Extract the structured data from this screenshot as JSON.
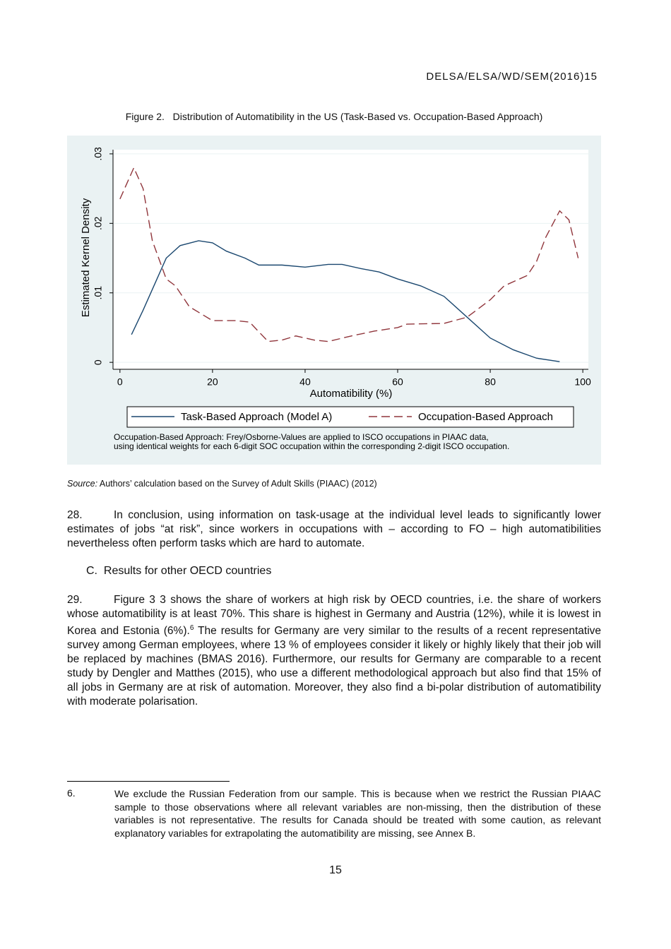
{
  "header": "DELSA/ELSA/WD/SEM(2016)15",
  "figure": {
    "caption": "Figure 2.   Distribution of Automatibility in the US (Task-Based vs. Occupation-Based Approach)",
    "note": [
      "Occupation-Based Approach: Frey/Osborne-Values are applied to ISCO occupations in PIAAC data,",
      "using identical weights for each 6-digit SOC occupation within the corresponding 2-digit ISCO occupation."
    ],
    "source_label": "Source:",
    "source_text": "Authors’ calculation based on the Survey of Adult Skills (PIAAC) (2012)"
  },
  "chart_data": {
    "type": "line",
    "x_label": "Automatibility (%)",
    "y_label": "Estimated Kernel Density",
    "xlim": [
      -1.5,
      101.2
    ],
    "ylim": [
      -0.001,
      0.0306
    ],
    "xticks": [
      0,
      20,
      40,
      60,
      80,
      100
    ],
    "yticks": [
      0,
      {
        "value": 0.01,
        "label": ".01"
      },
      {
        "value": 0.02,
        "label": ".02"
      },
      {
        "value": 0.03,
        "label": ".03"
      }
    ],
    "grid": true,
    "legend": "bottom",
    "series": [
      {
        "name": "Task-Based Approach (Model A)",
        "color": "#1a476f",
        "line_style": "solid",
        "x": [
          2.5,
          5,
          8,
          10,
          13,
          17,
          20,
          23,
          27,
          30,
          35,
          40,
          45,
          48,
          52,
          56,
          60,
          65,
          70,
          75,
          80,
          85,
          90,
          95
        ],
        "values": [
          0.004,
          0.0075,
          0.012,
          0.015,
          0.0168,
          0.0175,
          0.0172,
          0.016,
          0.015,
          0.014,
          0.014,
          0.0137,
          0.0141,
          0.0141,
          0.0135,
          0.013,
          0.012,
          0.011,
          0.0095,
          0.0065,
          0.0035,
          0.0018,
          0.0006,
          0.0001
        ]
      },
      {
        "name": "Occupation-Based Approach",
        "color": "#90353b",
        "line_style": "dashed",
        "x": [
          0,
          3,
          5,
          7,
          10,
          12,
          15,
          20,
          25,
          28,
          32,
          35,
          38,
          42,
          45,
          50,
          55,
          60,
          62,
          70,
          75,
          80,
          83,
          88,
          90,
          92,
          95,
          97,
          99
        ],
        "values": [
          0.0235,
          0.028,
          0.025,
          0.0175,
          0.012,
          0.011,
          0.008,
          0.006,
          0.006,
          0.0058,
          0.003,
          0.0032,
          0.0038,
          0.0032,
          0.003,
          0.0038,
          0.0045,
          0.005,
          0.0055,
          0.0056,
          0.0065,
          0.009,
          0.011,
          0.0125,
          0.0145,
          0.018,
          0.0218,
          0.0205,
          0.015
        ]
      }
    ]
  },
  "paragraphs": [
    {
      "number": "28.",
      "text": "In conclusion, using information on task-usage at the individual level leads to significantly lower estimates of jobs “at risk”, since workers in occupations with – according to FO – high automatibilities nevertheless often perform tasks which are hard to automate."
    },
    {
      "number": "29.",
      "text": "Figure 3 3 shows the share of workers at high risk by OECD countries, i.e. the share of workers whose automatibility is at least 70%. This share is highest in Germany and Austria (12%), while it is lowest in Korea and Estonia (6%).",
      "footnote_ref": "6",
      "text_after": " The results for Germany are very similar to the results of a recent representative survey among German employees, where 13 % of employees consider it likely or highly likely that their job will be replaced by machines (BMAS 2016). Furthermore, our results for Germany are comparable to a recent study by Dengler and Matthes (2015), who use a different methodological approach but also find that 15% of all jobs in Germany are at risk of automation. Moreover, they also find a bi-polar distribution of automatibility with moderate polarisation."
    }
  ],
  "heading": "C.  Results for other OECD countries",
  "footnote": {
    "number": "6.",
    "text": "We exclude the Russian Federation from our sample. This is because when we restrict the Russian PIAAC sample to those observations where all relevant variables are non-missing, then the distribution of these variables is not representative. The results for Canada should be treated with some caution, as relevant explanatory variables for extrapolating the automatibility are missing, see Annex B."
  },
  "page_number": "15"
}
